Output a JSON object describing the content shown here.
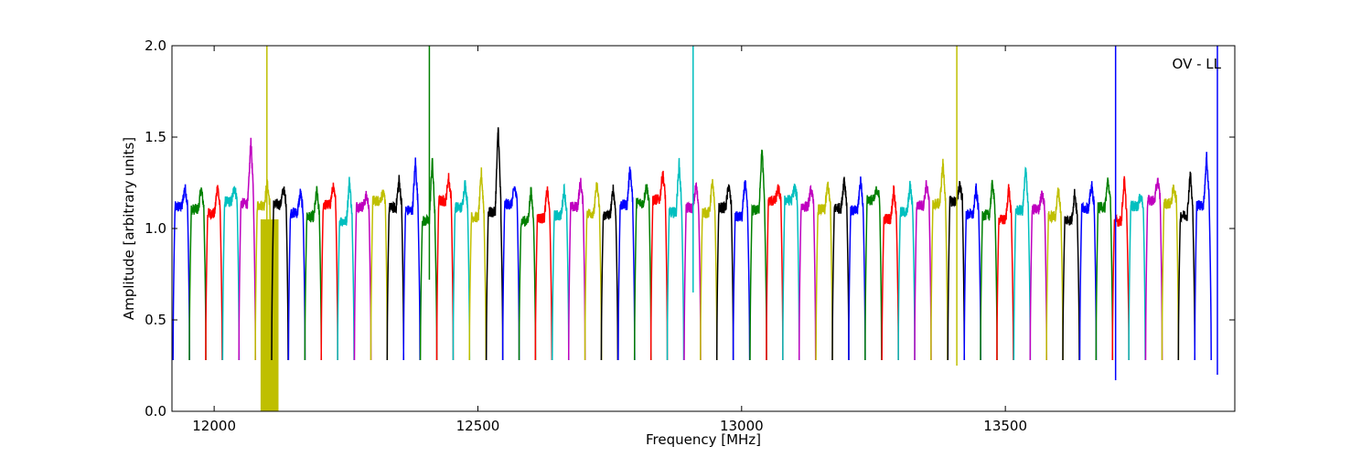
{
  "chart_data": {
    "type": "line",
    "xlabel": "Frequency [MHz]",
    "ylabel": "Amplitude [arbitrary units]",
    "annotation": "OV - LL",
    "xlim": [
      11920,
      13935
    ],
    "ylim": [
      0.0,
      2.0
    ],
    "xticks": [
      12000,
      12500,
      13000,
      13500
    ],
    "xtick_labels": [
      "12000",
      "12500",
      "13000",
      "13500"
    ],
    "yticks": [
      0.0,
      0.5,
      1.0,
      1.5,
      2.0
    ],
    "ytick_labels": [
      "0.0",
      "0.5",
      "1.0",
      "1.5",
      "2.0"
    ],
    "grid": false,
    "colors": [
      "#0000ff",
      "#008000",
      "#ff0000",
      "#00bfbf",
      "#bf00bf",
      "#bfbf00",
      "#000000"
    ],
    "channel_width_mhz": 31.25,
    "channels": [
      {
        "start": 11922,
        "color": "#0000ff",
        "peak": 1.23
      },
      {
        "start": 11953,
        "color": "#008000",
        "peak": 1.22
      },
      {
        "start": 11984,
        "color": "#ff0000",
        "peak": 1.24
      },
      {
        "start": 12016,
        "color": "#00bfbf",
        "peak": 1.23
      },
      {
        "start": 12047,
        "color": "#bf00bf",
        "peak": 1.49
      },
      {
        "start": 12078,
        "color": "#bfbf00",
        "peak": 1.25
      },
      {
        "start": 12109,
        "color": "#000000",
        "peak": 1.22
      },
      {
        "start": 12141,
        "color": "#0000ff",
        "peak": 1.2
      },
      {
        "start": 12172,
        "color": "#008000",
        "peak": 1.21
      },
      {
        "start": 12203,
        "color": "#ff0000",
        "peak": 1.23
      },
      {
        "start": 12234,
        "color": "#00bfbf",
        "peak": 1.27
      },
      {
        "start": 12266,
        "color": "#bf00bf",
        "peak": 1.18
      },
      {
        "start": 12297,
        "color": "#bfbf00",
        "peak": 1.19
      },
      {
        "start": 12328,
        "color": "#000000",
        "peak": 1.27
      },
      {
        "start": 12359,
        "color": "#0000ff",
        "peak": 1.37
      },
      {
        "start": 12391,
        "color": "#008000",
        "peak": 1.38
      },
      {
        "start": 12422,
        "color": "#ff0000",
        "peak": 1.28
      },
      {
        "start": 12453,
        "color": "#00bfbf",
        "peak": 1.25
      },
      {
        "start": 12484,
        "color": "#bfbf00",
        "peak": 1.31
      },
      {
        "start": 12516,
        "color": "#000000",
        "peak": 1.56
      },
      {
        "start": 12547,
        "color": "#0000ff",
        "peak": 1.23
      },
      {
        "start": 12578,
        "color": "#008000",
        "peak": 1.21
      },
      {
        "start": 12609,
        "color": "#ff0000",
        "peak": 1.22
      },
      {
        "start": 12641,
        "color": "#00bfbf",
        "peak": 1.22
      },
      {
        "start": 12672,
        "color": "#bf00bf",
        "peak": 1.26
      },
      {
        "start": 12703,
        "color": "#bfbf00",
        "peak": 1.25
      },
      {
        "start": 12734,
        "color": "#000000",
        "peak": 1.22
      },
      {
        "start": 12766,
        "color": "#0000ff",
        "peak": 1.34
      },
      {
        "start": 12797,
        "color": "#008000",
        "peak": 1.24
      },
      {
        "start": 12828,
        "color": "#ff0000",
        "peak": 1.31
      },
      {
        "start": 12859,
        "color": "#00bfbf",
        "peak": 1.36
      },
      {
        "start": 12891,
        "color": "#bf00bf",
        "peak": 1.24
      },
      {
        "start": 12922,
        "color": "#bfbf00",
        "peak": 1.26
      },
      {
        "start": 12953,
        "color": "#000000",
        "peak": 1.24
      },
      {
        "start": 12984,
        "color": "#0000ff",
        "peak": 1.27
      },
      {
        "start": 13016,
        "color": "#008000",
        "peak": 1.44
      },
      {
        "start": 13047,
        "color": "#ff0000",
        "peak": 1.22
      },
      {
        "start": 13078,
        "color": "#00bfbf",
        "peak": 1.23
      },
      {
        "start": 13109,
        "color": "#bf00bf",
        "peak": 1.22
      },
      {
        "start": 13141,
        "color": "#bfbf00",
        "peak": 1.25
      },
      {
        "start": 13172,
        "color": "#000000",
        "peak": 1.28
      },
      {
        "start": 13203,
        "color": "#0000ff",
        "peak": 1.27
      },
      {
        "start": 13234,
        "color": "#008000",
        "peak": 1.22
      },
      {
        "start": 13266,
        "color": "#ff0000",
        "peak": 1.22
      },
      {
        "start": 13297,
        "color": "#00bfbf",
        "peak": 1.24
      },
      {
        "start": 13328,
        "color": "#bf00bf",
        "peak": 1.25
      },
      {
        "start": 13359,
        "color": "#bfbf00",
        "peak": 1.36
      },
      {
        "start": 13391,
        "color": "#000000",
        "peak": 1.25
      },
      {
        "start": 13422,
        "color": "#0000ff",
        "peak": 1.22
      },
      {
        "start": 13453,
        "color": "#008000",
        "peak": 1.26
      },
      {
        "start": 13484,
        "color": "#ff0000",
        "peak": 1.23
      },
      {
        "start": 13516,
        "color": "#00bfbf",
        "peak": 1.33
      },
      {
        "start": 13547,
        "color": "#bf00bf",
        "peak": 1.2
      },
      {
        "start": 13578,
        "color": "#bfbf00",
        "peak": 1.22
      },
      {
        "start": 13609,
        "color": "#000000",
        "peak": 1.2
      },
      {
        "start": 13641,
        "color": "#0000ff",
        "peak": 1.24
      },
      {
        "start": 13672,
        "color": "#008000",
        "peak": 1.27
      },
      {
        "start": 13703,
        "color": "#ff0000",
        "peak": 1.27
      },
      {
        "start": 13734,
        "color": "#00bfbf",
        "peak": 1.18
      },
      {
        "start": 13766,
        "color": "#bf00bf",
        "peak": 1.27
      },
      {
        "start": 13797,
        "color": "#bfbf00",
        "peak": 1.23
      },
      {
        "start": 13828,
        "color": "#000000",
        "peak": 1.31
      },
      {
        "start": 13859,
        "color": "#0000ff",
        "peak": 1.4
      }
    ],
    "spikes": [
      {
        "x": 12100,
        "top": 2.0,
        "bottom": 0.0,
        "color": "#bfbf00"
      },
      {
        "x": 12408,
        "top": 2.0,
        "bottom": 0.72,
        "color": "#008000"
      },
      {
        "x": 12908,
        "top": 2.0,
        "bottom": 0.65,
        "color": "#00bfbf"
      },
      {
        "x": 13408,
        "top": 2.0,
        "bottom": 0.25,
        "color": "#bfbf00"
      },
      {
        "x": 13709,
        "top": 2.0,
        "bottom": 0.17,
        "color": "#0000ff"
      },
      {
        "x": 13902,
        "top": 2.0,
        "bottom": 0.2,
        "color": "#0000ff"
      }
    ],
    "filled_block": {
      "x0": 12088,
      "x1": 12122,
      "y0": 0.0,
      "y1": 1.05,
      "color": "#bfbf00"
    }
  }
}
